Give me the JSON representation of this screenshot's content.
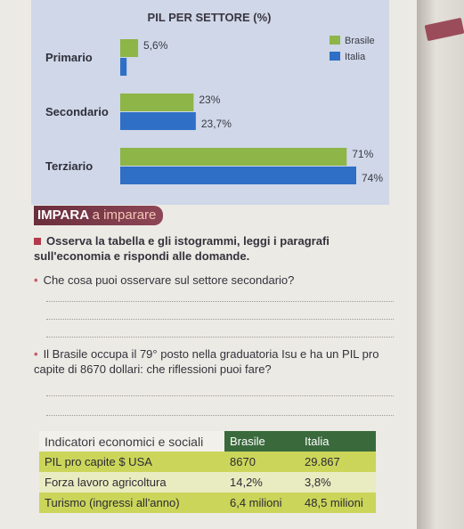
{
  "chart_data": {
    "type": "bar",
    "title": "PIL PER SETTORE (%)",
    "categories": [
      "Primario",
      "Secondario",
      "Terziario"
    ],
    "series": [
      {
        "name": "Brasile",
        "values": [
          5.6,
          23,
          71
        ],
        "labels": [
          "5,6%",
          "23%",
          "71%"
        ],
        "color": "#8db547"
      },
      {
        "name": "Italia",
        "values": [
          2,
          23.7,
          74
        ],
        "labels": [
          "",
          "23,7%",
          "74%"
        ],
        "color": "#2f6fc6"
      }
    ],
    "xlim": [
      0,
      74
    ],
    "legend_position": "top-right",
    "grid": false
  },
  "impara": {
    "title": "IMPARA",
    "subtitle": "a imparare",
    "task": "Osserva la tabella e gli istogrammi, leggi i paragrafi sull'economia e rispondi alle domande.",
    "question1": "Che cosa puoi osservare sul settore secondario?",
    "question2": "Il Brasile occupa il 79° posto nella graduatoria Isu e ha un PIL pro capite di 8670 dollari: che riflessioni puoi fare?"
  },
  "table": {
    "headers": [
      "Indicatori economici e sociali",
      "Brasile",
      "Italia"
    ],
    "rows": [
      [
        "PIL pro capite $ USA",
        "8670",
        "29.867"
      ],
      [
        "Forza lavoro agricoltura",
        "14,2%",
        "3,8%"
      ],
      [
        "Turismo (ingressi all'anno)",
        "6,4 milioni",
        "48,5 milioni"
      ]
    ]
  }
}
